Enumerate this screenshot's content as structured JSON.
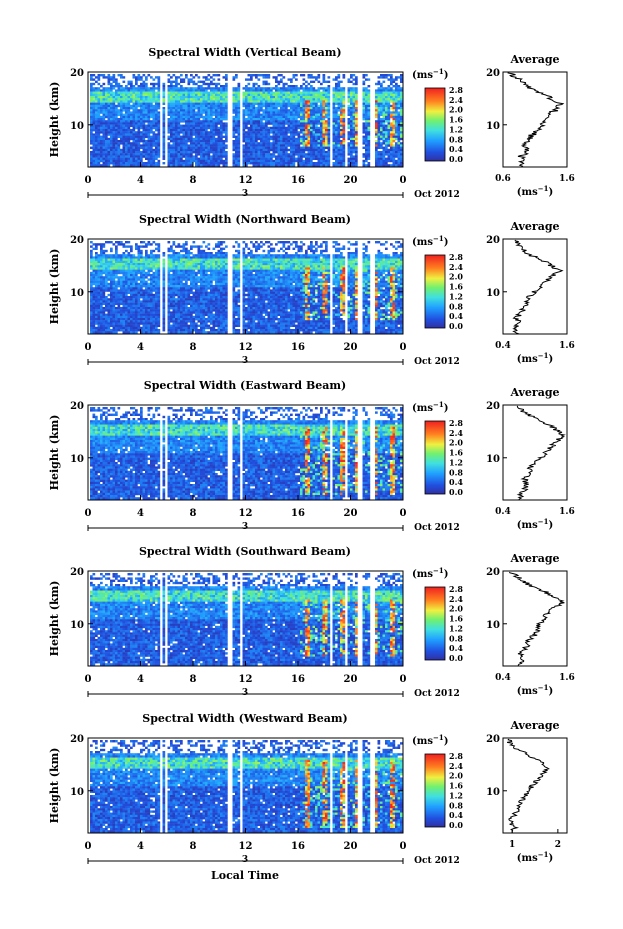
{
  "figure": {
    "x_axis_title": "Local Time",
    "date_label": "Oct 2012",
    "day_label": "3",
    "colorbar_unit": "(ms",
    "colorbar_unit_exp": "−1",
    "colorbar_unit_close": ")",
    "colorbar_ticks": [
      "0.0",
      "0.4",
      "0.8",
      "1.2",
      "1.6",
      "2.0",
      "2.4",
      "2.8"
    ],
    "x_ticks": [
      "0",
      "4",
      "8",
      "12",
      "16",
      "20",
      "0"
    ],
    "y_ticks": [
      "20",
      "10"
    ],
    "y_label": "Height (km)",
    "avg_title": "Average",
    "avg_unit": "(ms",
    "avg_unit_exp": "−1",
    "avg_unit_close": ")"
  },
  "chart_data": [
    {
      "type": "heatmap",
      "title": "Spectral Width (Vertical Beam)",
      "xlabel": "Local Time",
      "ylabel": "Height (km)",
      "x_range_hours": [
        0,
        24
      ],
      "ylim": [
        2,
        20
      ],
      "data_gaps_hours": [
        [
          5.3,
          5.6
        ],
        [
          5.8,
          6.0
        ],
        [
          10.6,
          11.0
        ],
        [
          11.4,
          11.6
        ],
        [
          18.3,
          18.6
        ],
        [
          19.5,
          19.7
        ],
        [
          20.5,
          20.9
        ],
        [
          21.3,
          21.7
        ]
      ],
      "enhanced_layer": {
        "start_hour": 16,
        "end_hour": 24,
        "height_km": [
          6,
          15
        ],
        "max_value": 2.8
      },
      "colorbar": {
        "min": 0.0,
        "max": 3.0,
        "unit": "ms^-1"
      },
      "average_profile": {
        "title": "Average",
        "xlim_labels": [
          "0.6",
          "1.6"
        ],
        "xlim": [
          0.6,
          1.6
        ],
        "height_km": [
          2,
          3,
          4,
          5,
          6,
          7,
          8,
          9,
          10,
          11,
          12,
          13,
          14,
          15,
          16,
          17,
          18,
          19,
          20
        ],
        "values": [
          0.85,
          0.9,
          0.88,
          1.0,
          0.92,
          1.0,
          1.05,
          1.15,
          1.2,
          1.25,
          1.3,
          1.45,
          1.5,
          1.35,
          1.2,
          1.0,
          0.9,
          0.8,
          0.7
        ]
      }
    },
    {
      "type": "heatmap",
      "title": "Spectral Width (Northward Beam)",
      "xlabel": "Local Time",
      "ylabel": "Height (km)",
      "x_range_hours": [
        0,
        24
      ],
      "ylim": [
        2,
        20
      ],
      "data_gaps_hours": [
        [
          5.3,
          5.6
        ],
        [
          5.8,
          6.0
        ],
        [
          10.6,
          11.0
        ],
        [
          11.4,
          11.6
        ],
        [
          18.3,
          18.6
        ],
        [
          19.5,
          19.7
        ],
        [
          20.5,
          20.9
        ],
        [
          21.3,
          21.7
        ]
      ],
      "enhanced_layer": {
        "start_hour": 16,
        "end_hour": 24,
        "height_km": [
          5,
          15
        ],
        "max_value": 2.8
      },
      "colorbar": {
        "min": 0.0,
        "max": 3.0,
        "unit": "ms^-1"
      },
      "average_profile": {
        "title": "Average",
        "xlim_labels": [
          "0.4",
          "1.6"
        ],
        "xlim": [
          0.4,
          1.6
        ],
        "height_km": [
          2,
          3,
          4,
          5,
          6,
          7,
          8,
          9,
          10,
          11,
          12,
          13,
          14,
          15,
          16,
          17,
          18,
          19,
          20
        ],
        "values": [
          0.65,
          0.6,
          0.7,
          0.65,
          0.75,
          0.8,
          0.85,
          0.9,
          1.0,
          1.1,
          1.2,
          1.35,
          1.45,
          1.3,
          1.15,
          0.9,
          0.8,
          0.7,
          0.6
        ]
      }
    },
    {
      "type": "heatmap",
      "title": "Spectral Width (Eastward Beam)",
      "xlabel": "Local Time",
      "ylabel": "Height (km)",
      "x_range_hours": [
        0,
        24
      ],
      "ylim": [
        2,
        20
      ],
      "data_gaps_hours": [
        [
          5.3,
          5.6
        ],
        [
          5.8,
          6.0
        ],
        [
          10.6,
          11.0
        ],
        [
          11.4,
          11.6
        ],
        [
          18.3,
          18.6
        ],
        [
          19.5,
          19.7
        ],
        [
          20.5,
          20.9
        ],
        [
          21.3,
          21.7
        ]
      ],
      "enhanced_layer": {
        "start_hour": 16,
        "end_hour": 24,
        "height_km": [
          3,
          16
        ],
        "max_value": 2.8
      },
      "colorbar": {
        "min": 0.0,
        "max": 3.0,
        "unit": "ms^-1"
      },
      "average_profile": {
        "title": "Average",
        "xlim_labels": [
          "0.4",
          "1.6"
        ],
        "xlim": [
          0.4,
          1.6
        ],
        "height_km": [
          2,
          3,
          4,
          5,
          6,
          7,
          8,
          9,
          10,
          11,
          12,
          13,
          14,
          15,
          16,
          17,
          18,
          19,
          20
        ],
        "values": [
          0.75,
          0.7,
          0.8,
          0.85,
          0.8,
          0.95,
          0.9,
          1.0,
          1.1,
          1.2,
          1.3,
          1.4,
          1.5,
          1.45,
          1.3,
          1.1,
          0.9,
          0.75,
          0.6
        ]
      }
    },
    {
      "type": "heatmap",
      "title": "Spectral Width (Southward Beam)",
      "xlabel": "Local Time",
      "ylabel": "Height (km)",
      "x_range_hours": [
        0,
        24
      ],
      "ylim": [
        2,
        20
      ],
      "data_gaps_hours": [
        [
          5.3,
          5.6
        ],
        [
          5.8,
          6.0
        ],
        [
          10.6,
          11.0
        ],
        [
          11.4,
          11.6
        ],
        [
          18.3,
          18.6
        ],
        [
          19.5,
          19.7
        ],
        [
          20.5,
          20.9
        ],
        [
          21.3,
          21.7
        ]
      ],
      "enhanced_layer": {
        "start_hour": 16,
        "end_hour": 24,
        "height_km": [
          4,
          15
        ],
        "max_value": 2.8
      },
      "colorbar": {
        "min": 0.0,
        "max": 3.0,
        "unit": "ms^-1"
      },
      "average_profile": {
        "title": "Average",
        "xlim_labels": [
          "0.4",
          "1.6"
        ],
        "xlim": [
          0.4,
          1.6
        ],
        "height_km": [
          2,
          3,
          4,
          5,
          6,
          7,
          8,
          9,
          10,
          11,
          12,
          13,
          14,
          15,
          16,
          17,
          18,
          19,
          20
        ],
        "values": [
          0.7,
          0.75,
          0.7,
          0.8,
          0.85,
          0.9,
          1.0,
          1.05,
          1.1,
          1.15,
          1.25,
          1.35,
          1.5,
          1.4,
          1.2,
          0.95,
          0.8,
          0.65,
          0.55
        ]
      }
    },
    {
      "type": "heatmap",
      "title": "Spectral Width (Westward Beam)",
      "xlabel": "Local Time",
      "ylabel": "Height (km)",
      "x_range_hours": [
        0,
        24
      ],
      "ylim": [
        2,
        20
      ],
      "data_gaps_hours": [
        [
          5.3,
          5.6
        ],
        [
          5.8,
          6.0
        ],
        [
          10.6,
          11.0
        ],
        [
          11.4,
          11.6
        ],
        [
          18.3,
          18.6
        ],
        [
          19.5,
          19.7
        ],
        [
          20.5,
          20.9
        ],
        [
          21.3,
          21.7
        ]
      ],
      "enhanced_layer": {
        "start_hour": 16,
        "end_hour": 24,
        "height_km": [
          3,
          16
        ],
        "max_value": 2.8
      },
      "colorbar": {
        "min": 0.0,
        "max": 3.0,
        "unit": "ms^-1"
      },
      "average_profile": {
        "title": "Average",
        "xlim_labels": [
          "1",
          "2"
        ],
        "xlim": [
          0.8,
          2.2
        ],
        "height_km": [
          2,
          3,
          4,
          5,
          6,
          7,
          8,
          9,
          10,
          11,
          12,
          13,
          14,
          15,
          16,
          17,
          18,
          19,
          20
        ],
        "values": [
          1.0,
          1.05,
          0.95,
          1.0,
          1.1,
          1.15,
          1.2,
          1.3,
          1.35,
          1.45,
          1.55,
          1.65,
          1.75,
          1.7,
          1.5,
          1.3,
          1.1,
          0.95,
          0.9
        ]
      }
    }
  ]
}
